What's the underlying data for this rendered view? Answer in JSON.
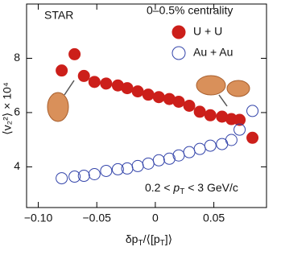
{
  "chart_data": {
    "type": "scatter",
    "experiment_label": "STAR",
    "centrality_label": "0–0.5% centrality",
    "annotation_parts": [
      "0.2 < ",
      "p",
      "T",
      " < 3 GeV/c"
    ],
    "x_label_parts": [
      "δp",
      "T",
      "/⟨[p",
      "T",
      "]⟩"
    ],
    "y_label": "⟨v₂²⟩ × 10⁴",
    "xlim": [
      -0.11,
      0.095
    ],
    "ylim": [
      2.5,
      10
    ],
    "xticks": [
      {
        "value": -0.1,
        "label": "−0.10"
      },
      {
        "value": -0.05,
        "label": "−0.05"
      },
      0,
      0.05
    ],
    "yticks": [
      4,
      6,
      8
    ],
    "series": [
      {
        "name": "U + U",
        "color": "#cc1f1a",
        "marker": "filled",
        "x": [
          -0.08,
          -0.069,
          -0.061,
          -0.052,
          -0.042,
          -0.032,
          -0.024,
          -0.015,
          -0.006,
          0.003,
          0.012,
          0.02,
          0.029,
          0.038,
          0.047,
          0.057,
          0.065,
          0.072,
          0.083
        ],
        "values": [
          7.55,
          8.15,
          7.35,
          7.13,
          7.07,
          7.0,
          6.9,
          6.78,
          6.66,
          6.57,
          6.5,
          6.4,
          6.25,
          6.03,
          5.9,
          5.85,
          5.76,
          5.73,
          5.07
        ]
      },
      {
        "name": "Au + Au",
        "color": "#3344aa",
        "marker": "open",
        "x": [
          -0.08,
          -0.069,
          -0.061,
          -0.052,
          -0.042,
          -0.032,
          -0.024,
          -0.015,
          -0.006,
          0.003,
          0.012,
          0.02,
          0.029,
          0.038,
          0.047,
          0.057,
          0.065,
          0.072,
          0.083
        ],
        "values": [
          3.58,
          3.64,
          3.67,
          3.73,
          3.85,
          3.91,
          3.94,
          4.03,
          4.12,
          4.24,
          4.3,
          4.42,
          4.54,
          4.66,
          4.78,
          4.84,
          4.99,
          5.37,
          6.06
        ]
      }
    ]
  }
}
